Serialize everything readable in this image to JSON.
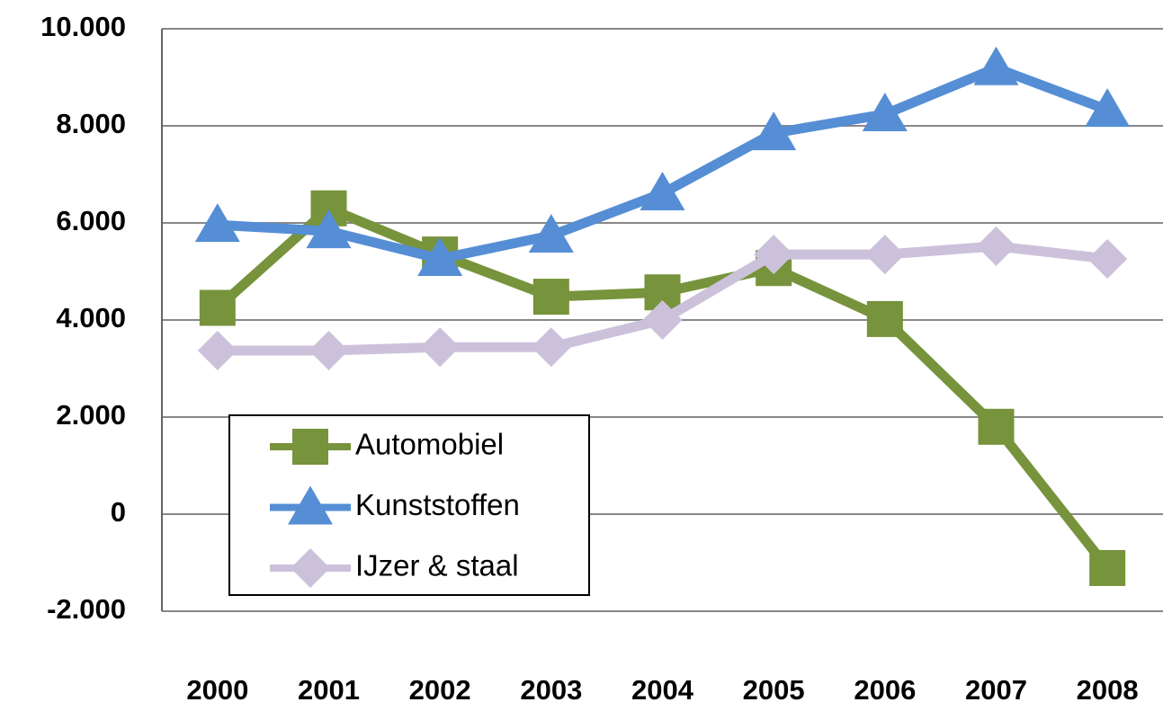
{
  "chart_data": {
    "type": "line",
    "categories": [
      "2000",
      "2001",
      "2002",
      "2003",
      "2004",
      "2005",
      "2006",
      "2007",
      "2008"
    ],
    "series": [
      {
        "name": "Automobiel",
        "color": "#77933c",
        "marker": "square",
        "values": [
          4250,
          6300,
          5350,
          4480,
          4570,
          5070,
          4020,
          1800,
          -1110
        ]
      },
      {
        "name": "Kunststoffen",
        "color": "#558ed5",
        "marker": "triangle",
        "values": [
          5960,
          5830,
          5260,
          5740,
          6610,
          7850,
          8240,
          9190,
          8330
        ]
      },
      {
        "name": "IJzer & staal",
        "color": "#ccc1da",
        "marker": "diamond",
        "values": [
          3370,
          3370,
          3440,
          3440,
          4000,
          5350,
          5350,
          5520,
          5260
        ]
      }
    ],
    "ylim": [
      -2000,
      10000
    ],
    "yticks": [
      {
        "value": -2000,
        "label": "-2.000"
      },
      0,
      {
        "value": 2000,
        "label": "2.000"
      },
      {
        "value": 4000,
        "label": "4.000"
      },
      {
        "value": 6000,
        "label": "6.000"
      },
      {
        "value": 8000,
        "label": "8.000"
      },
      {
        "value": 10000,
        "label": "10.000"
      }
    ],
    "grid": true,
    "legend": "lower left"
  }
}
